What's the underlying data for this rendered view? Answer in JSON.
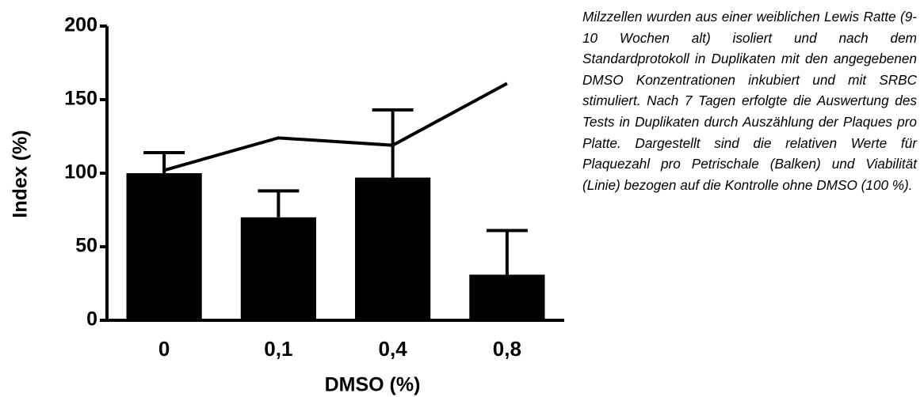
{
  "chart_data": {
    "type": "bar",
    "xlabel": "DMSO (%)",
    "ylabel": "Index (%)",
    "categories": [
      "0",
      "0,1",
      "0,4",
      "0,8"
    ],
    "values": [
      100,
      70,
      97,
      31
    ],
    "errors": [
      14,
      18,
      46,
      30
    ],
    "color": "#000000",
    "line": {
      "values": [
        102,
        124,
        119,
        161
      ],
      "color": "#000000"
    },
    "ylim": [
      0,
      200
    ],
    "yticks": [
      0,
      50,
      100,
      150,
      200
    ]
  },
  "caption": "Milzzellen wurden aus einer weiblichen Lewis Ratte (9-10 Wochen alt) isoliert und nach dem Standardprotokoll in Duplikaten mit den angegebenen DMSO Konzentrationen inkubiert und mit SRBC stimuliert. Nach 7 Tagen erfolgte die Auswertung des Tests in Duplikaten durch Auszählung der Plaques pro Platte. Dargestellt sind die relativen Werte für Plaquezahl pro Petrischale (Balken) und Viabilität (Linie) bezogen auf die Kontrolle ohne DMSO (100 %)."
}
